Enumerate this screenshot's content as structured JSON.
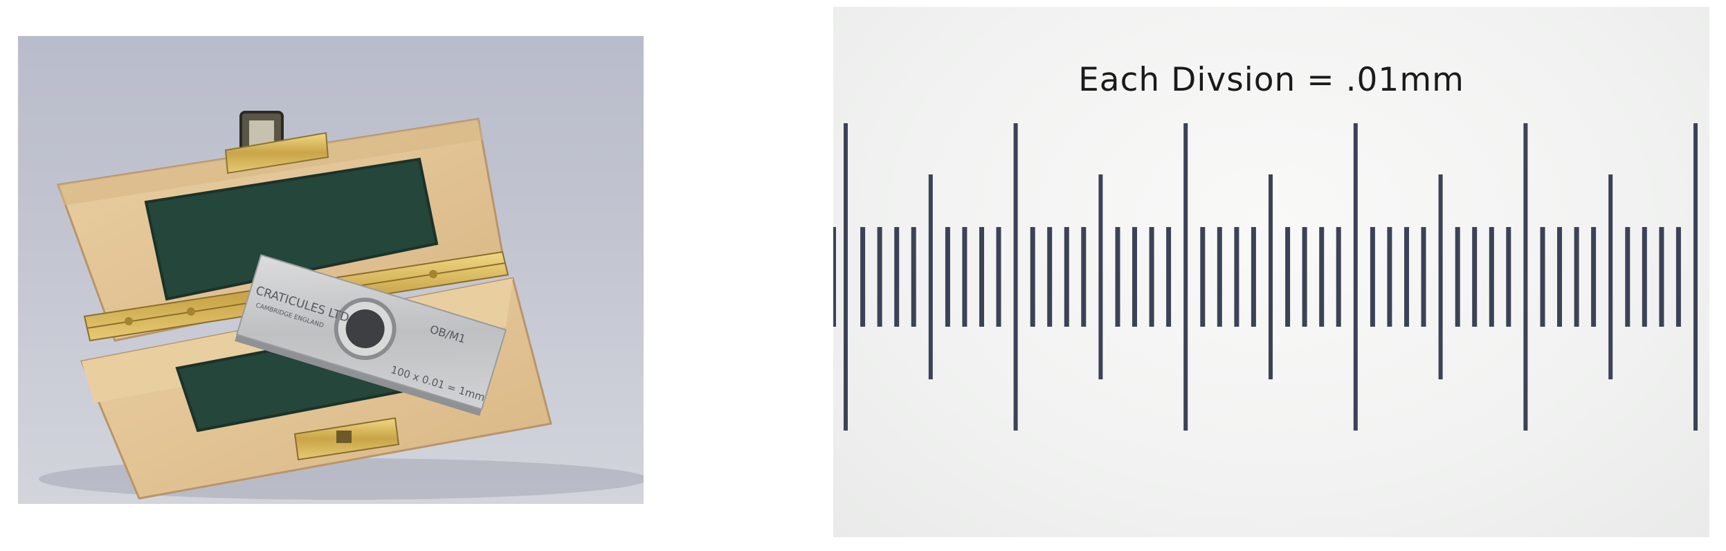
{
  "photo_left": {
    "slide_brand": "CRATICULES LTD",
    "slide_subtext": "CAMBRIDGE ENGLAND",
    "slide_code": "OB/M1",
    "slide_scale": "100 x 0.01 = 1mm"
  },
  "photo_right": {
    "title": "Each Divsion = .01mm",
    "scale": {
      "minor_ticks_visible": 51,
      "major_every": 10,
      "mid_every": 5
    }
  },
  "colors": {
    "wood": "#e4c596",
    "felt": "#25463a",
    "brass": "#d9b95a",
    "steel": "#c9cacb",
    "tick": "#3c4256"
  }
}
